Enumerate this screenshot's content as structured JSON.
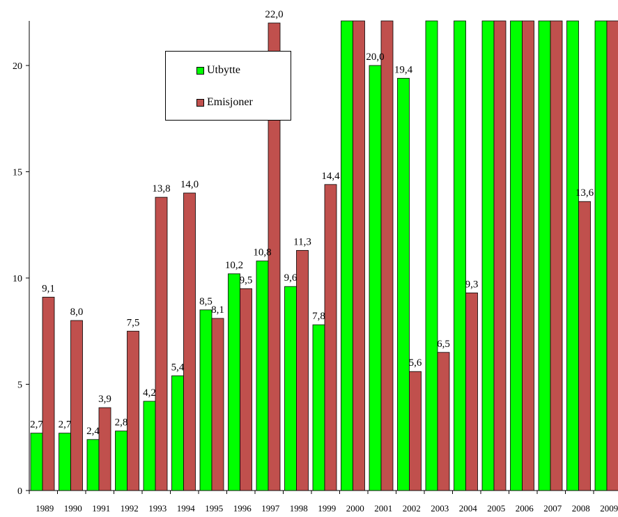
{
  "chart_data": {
    "type": "bar",
    "categories": [
      "1989",
      "1990",
      "1991",
      "1992",
      "1993",
      "1994",
      "1995",
      "1996",
      "1997",
      "1998",
      "1999",
      "2000",
      "2001",
      "2002",
      "2003",
      "2004",
      "2005",
      "2006",
      "2007",
      "2008",
      "2009"
    ],
    "series": [
      {
        "name": "Utbytte",
        "color": "#00ff00",
        "values": [
          2.7,
          2.7,
          2.4,
          2.8,
          4.2,
          5.4,
          8.5,
          10.2,
          10.8,
          9.6,
          7.8,
          null,
          20.0,
          19.4,
          null,
          null,
          null,
          null,
          null,
          null,
          null
        ],
        "labels": [
          "2,7",
          "2,7",
          "2,4",
          "2,8",
          "4,2",
          "5,4",
          "8,5",
          "10,2",
          "10,8",
          "9,6",
          "7,8",
          "",
          "20,0",
          "19,4",
          "",
          "",
          "",
          "",
          "",
          "",
          ""
        ]
      },
      {
        "name": "Emisjoner",
        "color": "#c0504d",
        "values": [
          9.1,
          8.0,
          3.9,
          7.5,
          13.8,
          14.0,
          8.1,
          9.5,
          22.0,
          11.3,
          14.4,
          null,
          null,
          5.6,
          6.5,
          9.3,
          null,
          null,
          null,
          13.6,
          null
        ],
        "labels": [
          "9,1",
          "8,0",
          "3,9",
          "7,5",
          "13,8",
          "14,0",
          "8,1",
          "9,5",
          "22,0",
          "11,3",
          "14,4",
          "",
          "",
          "5,6",
          "6,5",
          "9,3",
          "",
          "",
          "",
          "13,6",
          ""
        ]
      }
    ],
    "clipped_note_values": {
      "off_scale": true
    },
    "yticks": [
      "0",
      "5",
      "10",
      "15",
      "20"
    ],
    "ylim": [
      0,
      22
    ],
    "grid": false,
    "legend": "top-left"
  }
}
